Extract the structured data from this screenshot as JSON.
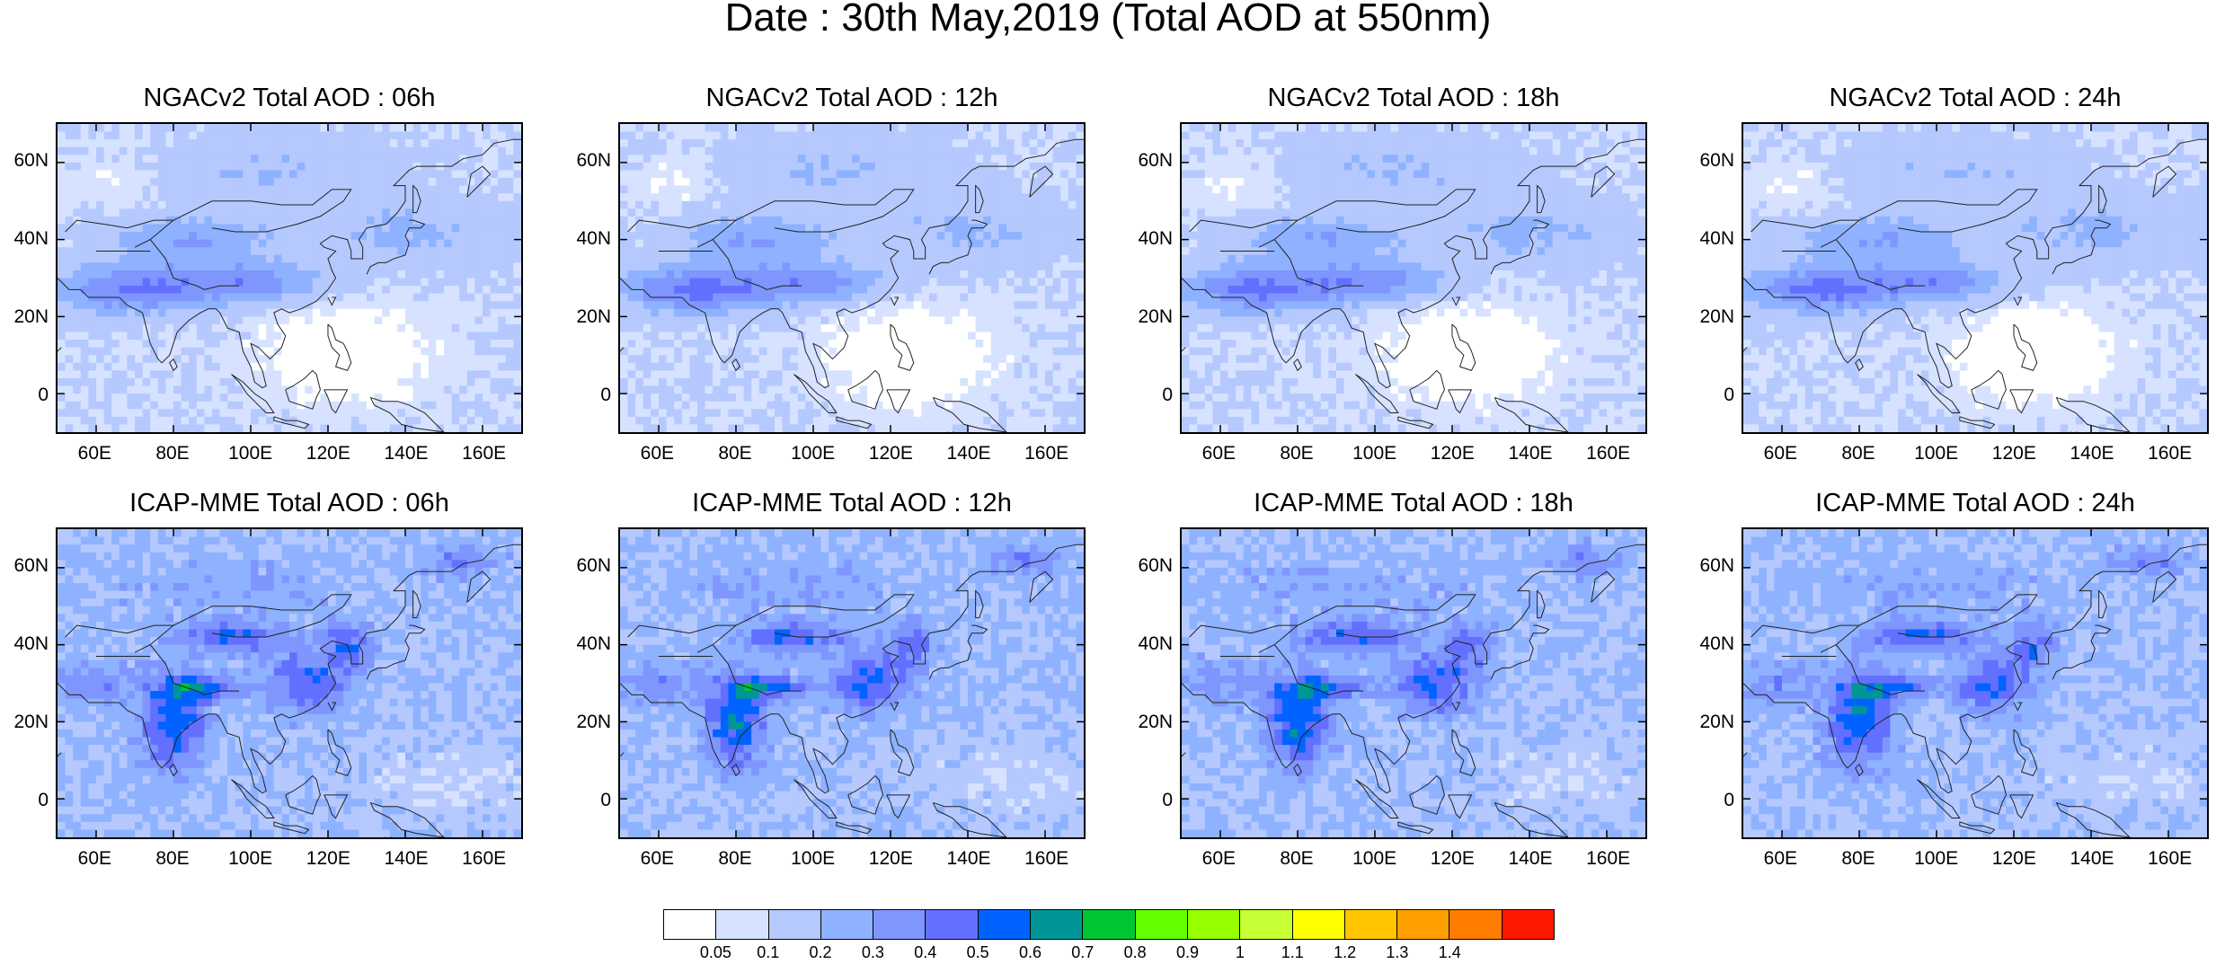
{
  "title": "Date : 30th May,2019 (Total AOD at 550nm)",
  "lat_labels": [
    "60N",
    "40N",
    "20N",
    "0"
  ],
  "lon_labels": [
    "60E",
    "80E",
    "100E",
    "120E",
    "140E",
    "160E"
  ],
  "panels": [
    {
      "title": "NGACv2 Total AOD : 06h",
      "model": "ngac"
    },
    {
      "title": "NGACv2 Total AOD : 12h",
      "model": "ngac"
    },
    {
      "title": "NGACv2 Total AOD : 18h",
      "model": "ngac"
    },
    {
      "title": "NGACv2 Total AOD : 24h",
      "model": "ngac"
    },
    {
      "title": "ICAP-MME Total AOD : 06h",
      "model": "icap"
    },
    {
      "title": "ICAP-MME Total AOD : 12h",
      "model": "icap"
    },
    {
      "title": "ICAP-MME Total AOD : 18h",
      "model": "icap"
    },
    {
      "title": "ICAP-MME Total AOD : 24h",
      "model": "icap"
    }
  ],
  "colorbar": {
    "labels": [
      "0.05",
      "0.1",
      "0.2",
      "0.3",
      "0.4",
      "0.5",
      "0.6",
      "0.7",
      "0.8",
      "0.9",
      "1",
      "1.1",
      "1.2",
      "1.3",
      "1.4"
    ],
    "colors": [
      "#ffffff",
      "#d6e2ff",
      "#b5c9ff",
      "#8eb2ff",
      "#7f96ff",
      "#6370ff",
      "#0063ff",
      "#009696",
      "#00c633",
      "#63ff00",
      "#96ff00",
      "#c6ff33",
      "#ffff00",
      "#ffc600",
      "#ffa000",
      "#ff7c00",
      "#ff1900"
    ]
  }
}
